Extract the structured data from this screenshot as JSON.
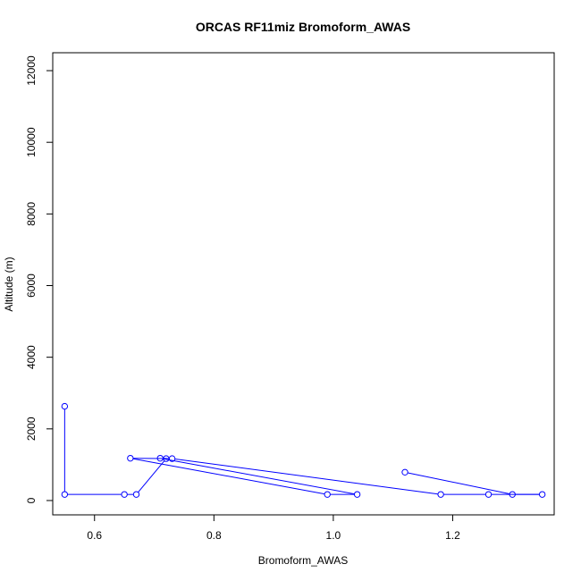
{
  "chart_data": {
    "type": "line",
    "title": "ORCAS RF11miz Bromoform_AWAS",
    "xlabel": "Bromoform_AWAS",
    "ylabel": "Altitude (m)",
    "xlim": [
      0.53,
      1.37
    ],
    "ylim": [
      -400,
      12500
    ],
    "x_ticks": [
      0.6,
      0.8,
      1.0,
      1.2
    ],
    "x_tick_labels": [
      "0.6",
      "0.8",
      "1.0",
      "1.2"
    ],
    "y_ticks": [
      0,
      2000,
      4000,
      6000,
      8000,
      10000,
      12000
    ],
    "y_tick_labels": [
      "0",
      "2000",
      "4000",
      "6000",
      "8000",
      "10000",
      "12000"
    ],
    "grid": false,
    "series": [
      {
        "color": "#0000ff",
        "marker": "open-circle",
        "points": [
          {
            "x": 0.55,
            "y": 2630
          },
          {
            "x": 0.55,
            "y": 170
          },
          {
            "x": 0.65,
            "y": 170
          },
          {
            "x": 0.67,
            "y": 170
          },
          {
            "x": 0.72,
            "y": 1170
          },
          {
            "x": 0.66,
            "y": 1180
          },
          {
            "x": 0.99,
            "y": 170
          },
          {
            "x": 1.04,
            "y": 170
          },
          {
            "x": 0.71,
            "y": 1180
          },
          {
            "x": 0.73,
            "y": 1170
          },
          {
            "x": 1.18,
            "y": 170
          },
          {
            "x": 1.26,
            "y": 170
          },
          {
            "x": 1.35,
            "y": 170
          },
          {
            "x": 1.3,
            "y": 170
          },
          {
            "x": 1.12,
            "y": 790
          }
        ]
      }
    ]
  }
}
